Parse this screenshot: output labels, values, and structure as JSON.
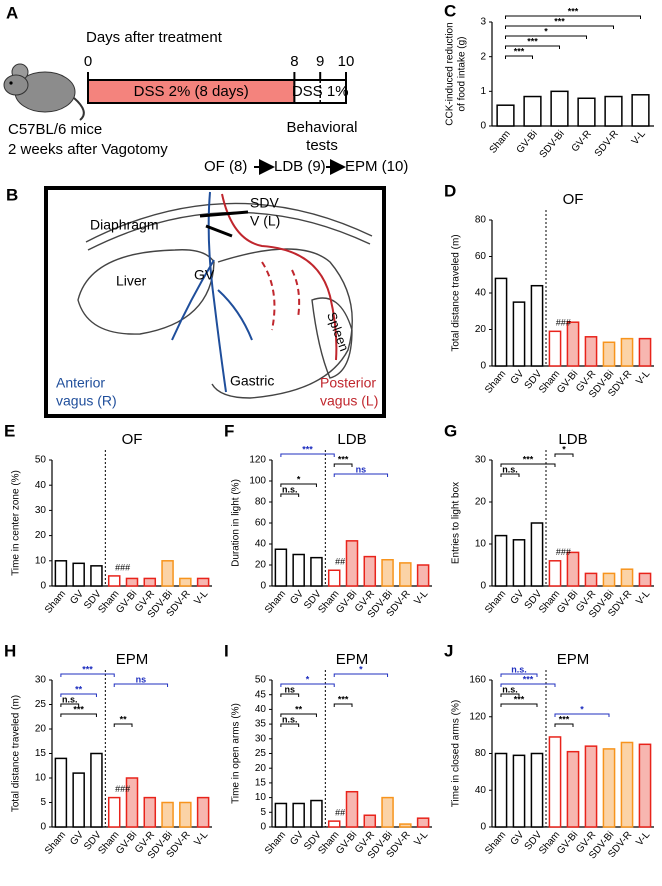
{
  "figure": {
    "panel_a": {
      "label": "A",
      "axis_title": "Days after treatment",
      "days": [
        0,
        8,
        9,
        10
      ],
      "phase_1": "DSS 2% (8 days)",
      "phase_2": "DSS 1%",
      "mouse_lines": [
        "C57BL/6 mice",
        "2 weeks after Vagotomy"
      ],
      "tests_lines": [
        "Behavioral",
        "tests"
      ],
      "test_sequence": [
        "OF (8)",
        "LDB (9)",
        "EPM (10)"
      ]
    },
    "panel_b": {
      "label": "B",
      "diaphragm": "Diaphragm",
      "sdv": "SDV",
      "vl": "V (L)",
      "gv": "GV",
      "liver": "Liver",
      "spleen": "Spleen",
      "gastric": "Gastric",
      "anterior_lines": [
        "Anterior",
        "vagus (R)"
      ],
      "posterior_lines": [
        "Posterior",
        "vagus (L)"
      ]
    }
  },
  "chart_data": [
    {
      "type": "bar",
      "label": "C",
      "y_label": [
        "CCK-induced reduction",
        "of food intake (g)"
      ],
      "categories": [
        "Sham",
        "GV-Bi",
        "SDV-Bi",
        "GV-R",
        "SDV-R",
        "V-L"
      ],
      "values": [
        0.6,
        0.85,
        1.0,
        0.8,
        0.85,
        0.9
      ],
      "colors": [
        "#000000",
        "#000000",
        "#000000",
        "#000000",
        "#000000",
        "#000000"
      ],
      "fill_colors": [
        "#ffffff",
        "#ffffff",
        "#ffffff",
        "#ffffff",
        "#ffffff",
        "#ffffff"
      ],
      "ylim": [
        0,
        3
      ],
      "yticks": [
        0,
        1,
        2,
        3
      ],
      "separator": false,
      "annotations": [
        {
          "text": "***",
          "color": "#000000"
        },
        {
          "text": "***",
          "color": "#000000"
        },
        {
          "text": "*",
          "color": "#000000"
        },
        {
          "text": "***",
          "color": "#000000"
        },
        {
          "text": "***",
          "color": "#000000"
        }
      ]
    },
    {
      "type": "bar",
      "label": "D",
      "title": "OF",
      "y_label": "Total distance traveled (m)",
      "categories": [
        "Sham",
        "GV",
        "SDV",
        "Sham",
        "GV-Bi",
        "GV-R",
        "SDV-Bi",
        "SDV-R",
        "V-L"
      ],
      "values": [
        48,
        35,
        44,
        19,
        24,
        16,
        13,
        15,
        15
      ],
      "colors": [
        "#000000",
        "#000000",
        "#000000",
        "#e8231b",
        "#e8231b",
        "#e8231b",
        "#f7941d",
        "#f7941d",
        "#e8231b"
      ],
      "fill_colors": [
        "#ffffff",
        "#ffffff",
        "#ffffff",
        "#ffffff",
        "#f7b6b0",
        "#f7b6b0",
        "#fbd3a6",
        "#fbd3a6",
        "#f7b6b0"
      ],
      "ylim": [
        0,
        80
      ],
      "yticks": [
        0,
        20,
        40,
        60,
        80
      ],
      "separator": true,
      "group_note": "###",
      "annotations": []
    },
    {
      "type": "bar",
      "label": "E",
      "title": "OF",
      "y_label": "Time in center zone (%)",
      "categories": [
        "Sham",
        "GV",
        "SDV",
        "Sham",
        "GV-Bi",
        "GV-R",
        "SDV-Bi",
        "SDV-R",
        "V-L"
      ],
      "values": [
        10,
        9,
        8,
        4,
        3,
        3,
        10,
        3,
        3
      ],
      "colors": [
        "#000000",
        "#000000",
        "#000000",
        "#e8231b",
        "#e8231b",
        "#e8231b",
        "#f7941d",
        "#f7941d",
        "#e8231b"
      ],
      "fill_colors": [
        "#ffffff",
        "#ffffff",
        "#ffffff",
        "#ffffff",
        "#f7b6b0",
        "#f7b6b0",
        "#fbd3a6",
        "#fbd3a6",
        "#f7b6b0"
      ],
      "ylim": [
        0,
        50
      ],
      "yticks": [
        0,
        10,
        20,
        30,
        40,
        50
      ],
      "separator": true,
      "group_note": "###",
      "annotations": []
    },
    {
      "type": "bar",
      "label": "F",
      "title": "LDB",
      "y_label": "Duration in light (%)",
      "categories": [
        "Sham",
        "GV",
        "SDV",
        "Sham",
        "GV-Bi",
        "GV-R",
        "SDV-Bi",
        "SDV-R",
        "V-L"
      ],
      "values": [
        35,
        30,
        27,
        15,
        43,
        28,
        25,
        22,
        20
      ],
      "colors": [
        "#000000",
        "#000000",
        "#000000",
        "#e8231b",
        "#e8231b",
        "#e8231b",
        "#f7941d",
        "#f7941d",
        "#e8231b"
      ],
      "fill_colors": [
        "#ffffff",
        "#ffffff",
        "#ffffff",
        "#ffffff",
        "#f7b6b0",
        "#f7b6b0",
        "#fbd3a6",
        "#fbd3a6",
        "#f7b6b0"
      ],
      "ylim": [
        0,
        120
      ],
      "yticks": [
        0,
        20,
        40,
        60,
        80,
        100,
        120
      ],
      "separator": true,
      "group_note": "##",
      "annotations": [
        {
          "text": "***",
          "color": "#1f2fbf"
        },
        {
          "text": "***",
          "color": "#000000"
        },
        {
          "text": "ns",
          "color": "#1f2fbf"
        },
        {
          "text": "*",
          "color": "#000000"
        },
        {
          "text": "n.s.",
          "color": "#000000"
        }
      ]
    },
    {
      "type": "bar",
      "label": "G",
      "title": "LDB",
      "y_label": "Entries to light box",
      "categories": [
        "Sham",
        "GV",
        "SDV",
        "Sham",
        "GV-Bi",
        "GV-R",
        "SDV-Bi",
        "SDV-R",
        "V-L"
      ],
      "values": [
        12,
        11,
        15,
        6,
        8,
        3,
        3,
        4,
        3
      ],
      "colors": [
        "#000000",
        "#000000",
        "#000000",
        "#e8231b",
        "#e8231b",
        "#e8231b",
        "#f7941d",
        "#f7941d",
        "#e8231b"
      ],
      "fill_colors": [
        "#ffffff",
        "#ffffff",
        "#ffffff",
        "#ffffff",
        "#f7b6b0",
        "#f7b6b0",
        "#fbd3a6",
        "#fbd3a6",
        "#f7b6b0"
      ],
      "ylim": [
        0,
        30
      ],
      "yticks": [
        0,
        10,
        20,
        30
      ],
      "separator": true,
      "group_note": "###",
      "annotations": [
        {
          "text": "*",
          "color": "#000000"
        },
        {
          "text": "***",
          "color": "#000000"
        },
        {
          "text": "n.s.",
          "color": "#000000"
        }
      ]
    },
    {
      "type": "bar",
      "label": "H",
      "title": "EPM",
      "y_label": "Total distance traveled  (m)",
      "categories": [
        "Sham",
        "GV",
        "SDV",
        "Sham",
        "GV-Bi",
        "GV-R",
        "SDV-Bi",
        "SDV-R",
        "V-L"
      ],
      "values": [
        14,
        11,
        15,
        6,
        10,
        6,
        5,
        5,
        6
      ],
      "colors": [
        "#000000",
        "#000000",
        "#000000",
        "#e8231b",
        "#e8231b",
        "#e8231b",
        "#f7941d",
        "#f7941d",
        "#e8231b"
      ],
      "fill_colors": [
        "#ffffff",
        "#ffffff",
        "#ffffff",
        "#ffffff",
        "#f7b6b0",
        "#f7b6b0",
        "#fbd3a6",
        "#fbd3a6",
        "#f7b6b0"
      ],
      "ylim": [
        0,
        30
      ],
      "yticks": [
        0,
        5,
        10,
        15,
        20,
        25,
        30
      ],
      "separator": true,
      "group_note": "###",
      "annotations": [
        {
          "text": "***",
          "color": "#1f2fbf"
        },
        {
          "text": "ns",
          "color": "#1f2fbf"
        },
        {
          "text": "**",
          "color": "#1f2fbf"
        },
        {
          "text": "n.s.",
          "color": "#000000"
        },
        {
          "text": "***",
          "color": "#000000"
        },
        {
          "text": "**",
          "color": "#000000"
        }
      ]
    },
    {
      "type": "bar",
      "label": "I",
      "title": "EPM",
      "y_label": "Time in open arms (%)",
      "categories": [
        "Sham",
        "GV",
        "SDV",
        "Sham",
        "GV-Bi",
        "GV-R",
        "SDV-Bi",
        "SDV-R",
        "V-L"
      ],
      "values": [
        8,
        8,
        9,
        2,
        12,
        4,
        10,
        1,
        3
      ],
      "colors": [
        "#000000",
        "#000000",
        "#000000",
        "#e8231b",
        "#e8231b",
        "#e8231b",
        "#f7941d",
        "#f7941d",
        "#e8231b"
      ],
      "fill_colors": [
        "#ffffff",
        "#ffffff",
        "#ffffff",
        "#ffffff",
        "#f7b6b0",
        "#f7b6b0",
        "#fbd3a6",
        "#fbd3a6",
        "#f7b6b0"
      ],
      "ylim": [
        0,
        50
      ],
      "yticks": [
        0,
        5,
        10,
        15,
        20,
        25,
        30,
        35,
        40,
        45,
        50
      ],
      "separator": true,
      "group_note": "##",
      "annotations": [
        {
          "text": "*",
          "color": "#1f2fbf"
        },
        {
          "text": "*",
          "color": "#1f2fbf"
        },
        {
          "text": "ns",
          "color": "#000000"
        },
        {
          "text": "***",
          "color": "#000000"
        },
        {
          "text": "**",
          "color": "#000000"
        },
        {
          "text": "n.s.",
          "color": "#000000"
        }
      ]
    },
    {
      "type": "bar",
      "label": "J",
      "title": "EPM",
      "y_label": "Time in closed arms (%)",
      "categories": [
        "Sham",
        "GV",
        "SDV",
        "Sham",
        "GV-Bi",
        "GV-R",
        "SDV-Bi",
        "SDV-R",
        "V-L"
      ],
      "values": [
        80,
        78,
        80,
        98,
        82,
        88,
        85,
        92,
        90
      ],
      "colors": [
        "#000000",
        "#000000",
        "#000000",
        "#e8231b",
        "#e8231b",
        "#e8231b",
        "#f7941d",
        "#f7941d",
        "#e8231b"
      ],
      "fill_colors": [
        "#ffffff",
        "#ffffff",
        "#ffffff",
        "#ffffff",
        "#f7b6b0",
        "#f7b6b0",
        "#fbd3a6",
        "#fbd3a6",
        "#f7b6b0"
      ],
      "ylim": [
        0,
        160
      ],
      "yticks": [
        0,
        40,
        80,
        120,
        160
      ],
      "separator": true,
      "annotations": [
        {
          "text": "n.s.",
          "color": "#1f2fbf"
        },
        {
          "text": "***",
          "color": "#1f2fbf"
        },
        {
          "text": "n.s.",
          "color": "#000000"
        },
        {
          "text": "***",
          "color": "#000000"
        },
        {
          "text": "*",
          "color": "#1f2fbf"
        },
        {
          "text": "***",
          "color": "#000000"
        }
      ]
    }
  ]
}
